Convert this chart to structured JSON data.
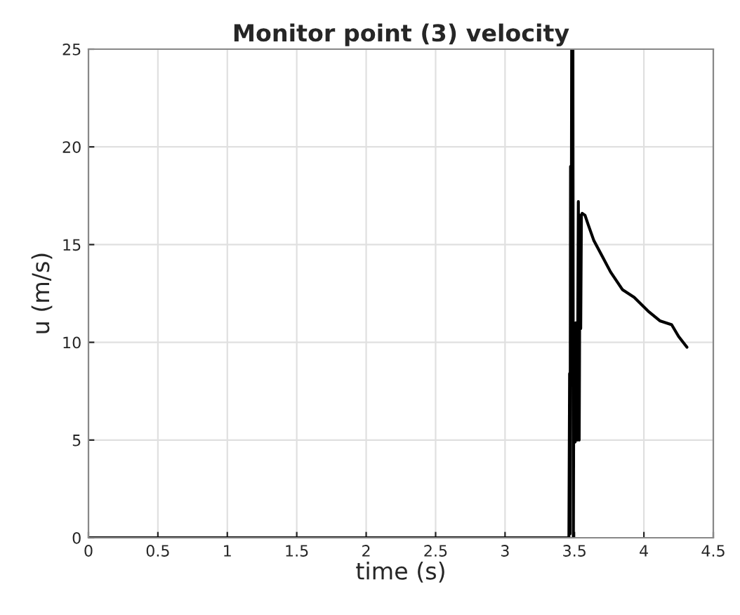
{
  "chart_data": {
    "type": "line",
    "title": "Monitor point (3) velocity",
    "xlabel": "time (s)",
    "ylabel": "u (m/s)",
    "x": [
      0,
      3.46,
      3.465,
      3.468,
      3.472,
      3.476,
      3.48,
      3.484,
      3.488,
      3.492,
      3.496,
      3.5,
      3.505,
      3.51,
      3.52,
      3.528,
      3.534,
      3.54,
      3.545,
      3.55,
      3.556,
      3.576,
      3.6,
      3.64,
      3.7,
      3.76,
      3.845,
      3.93,
      4.03,
      4.115,
      4.2,
      4.25,
      4.31
    ],
    "series": [
      {
        "color": "#000000",
        "values": [
          0,
          0,
          8.4,
          0.2,
          19,
          10,
          25,
          12,
          25,
          0,
          11,
          5,
          4.9,
          11,
          5,
          17.2,
          5,
          16.5,
          10.7,
          16.5,
          16.6,
          16.5,
          16,
          15.2,
          14.4,
          13.6,
          12.7,
          12.3,
          11.6,
          11.1,
          10.9,
          10.3,
          9.75
        ]
      }
    ],
    "xlim": [
      0,
      4.5
    ],
    "ylim": [
      0,
      25
    ],
    "xticks": [
      0,
      0.5,
      1,
      1.5,
      2,
      2.5,
      3,
      3.5,
      4,
      4.5
    ],
    "yticks": [
      0,
      5,
      10,
      15,
      20,
      25
    ],
    "grid": true,
    "legend": false,
    "marker": "none",
    "line_style": "solid"
  }
}
